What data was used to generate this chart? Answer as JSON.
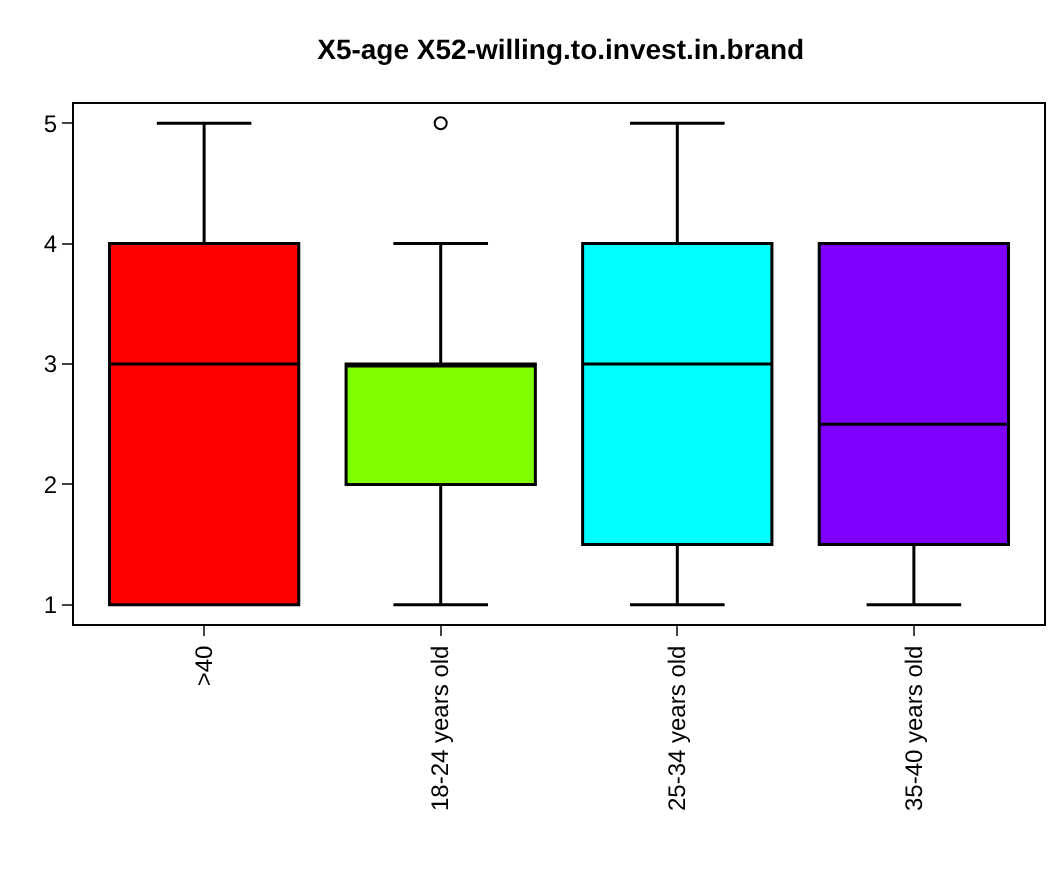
{
  "chart_data": {
    "type": "box",
    "title": "X5-age X52-willing.to.invest.in.brand",
    "categories": [
      ">40",
      "18-24 years old",
      "25-34 years old",
      "35-40 years old"
    ],
    "colors": [
      "#ff0000",
      "#80ff00",
      "#00ffff",
      "#8000ff"
    ],
    "boxes": [
      {
        "low": 1,
        "q1": 1,
        "median": 3,
        "q3": 4,
        "high": 5
      },
      {
        "low": 1,
        "q1": 2,
        "median": 3,
        "q3": 3,
        "high": 4,
        "outliers": [
          5
        ]
      },
      {
        "low": 1,
        "q1": 1.5,
        "median": 3,
        "q3": 4,
        "high": 5
      },
      {
        "low": 1,
        "q1": 1.5,
        "median": 2.5,
        "q3": 4,
        "high": 4
      }
    ],
    "ylim": [
      0.84,
      5.16
    ],
    "yticks": [
      1,
      2,
      3,
      4,
      5
    ]
  }
}
